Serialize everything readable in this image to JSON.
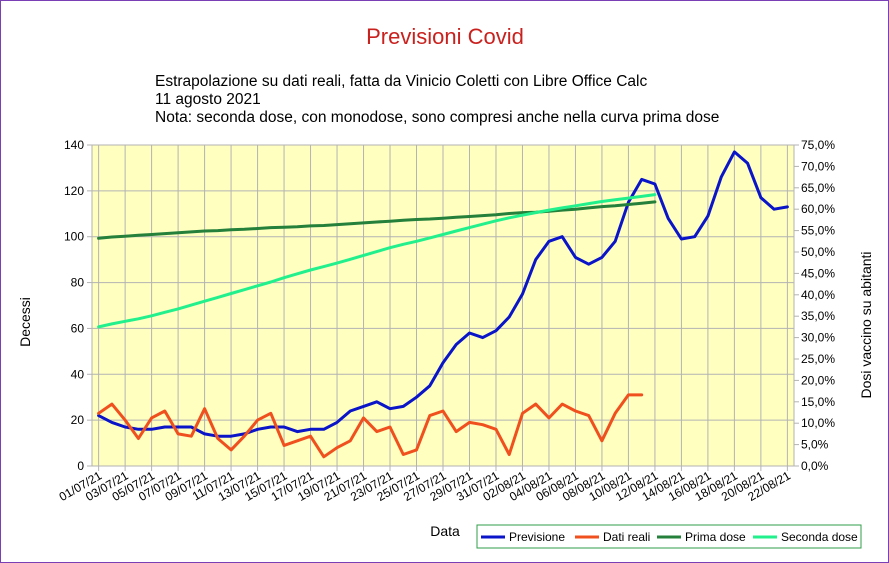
{
  "chart_data": {
    "type": "line",
    "title": "Previsioni Covid",
    "subtitle_lines": [
      "Estrapolazione su dati reali, fatta da Vinicio Coletti con Libre Office Calc",
      "11 agosto 2021",
      "Nota: seconda dose, con monodose, sono compresi anche nella curva prima dose"
    ],
    "xlabel": "Data",
    "ylabel": "Decessi",
    "y2label": "Dosi vaccino su abitanti",
    "ylim": [
      0,
      140
    ],
    "y2lim": [
      0,
      75
    ],
    "y_ticks": [
      "0",
      "20",
      "40",
      "60",
      "80",
      "100",
      "120",
      "140"
    ],
    "y2_ticks": [
      "0,0%",
      "5,0%",
      "10,0%",
      "15,0%",
      "20,0%",
      "25,0%",
      "30,0%",
      "35,0%",
      "40,0%",
      "45,0%",
      "50,0%",
      "55,0%",
      "60,0%",
      "65,0%",
      "70,0%",
      "75,0%"
    ],
    "x_tick_labels": [
      "01/07/21",
      "03/07/21",
      "05/07/21",
      "07/07/21",
      "09/07/21",
      "11/07/21",
      "13/07/21",
      "15/07/21",
      "17/07/21",
      "19/07/21",
      "21/07/21",
      "23/07/21",
      "25/07/21",
      "27/07/21",
      "29/07/21",
      "31/07/21",
      "02/08/21",
      "04/08/21",
      "06/08/21",
      "08/08/21",
      "10/08/21",
      "12/08/21",
      "14/08/21",
      "16/08/21",
      "18/08/21",
      "20/08/21",
      "22/08/21"
    ],
    "grid": true,
    "legend_position": "bottom-right",
    "series": [
      {
        "name": "Previsione",
        "axis": "left",
        "color": "#0a14c8",
        "values": [
          22,
          19,
          17,
          16,
          16,
          17,
          17,
          17,
          14,
          13,
          13,
          14,
          16,
          17,
          17,
          15,
          16,
          16,
          19,
          24,
          26,
          28,
          25,
          26,
          30,
          35,
          45,
          53,
          58,
          56,
          59,
          65,
          75,
          90,
          98,
          100,
          91,
          88,
          91,
          98,
          115,
          125,
          123,
          108,
          99,
          100,
          109,
          126,
          137,
          132,
          117,
          112,
          113
        ]
      },
      {
        "name": "Dati reali",
        "axis": "left",
        "color": "#f0501e",
        "values": [
          23,
          27,
          20,
          12,
          21,
          24,
          14,
          13,
          25,
          12,
          7,
          13,
          20,
          23,
          9,
          11,
          13,
          4,
          8,
          11,
          21,
          15,
          17,
          5,
          7,
          22,
          24,
          15,
          19,
          18,
          16,
          5,
          23,
          27,
          21,
          27,
          24,
          22,
          11,
          23,
          31,
          31
        ]
      },
      {
        "name": "Prima dose",
        "axis": "right",
        "color": "#24803a",
        "values": [
          53.2,
          53.5,
          53.7,
          53.9,
          54.1,
          54.3,
          54.5,
          54.7,
          54.9,
          55.0,
          55.2,
          55.3,
          55.5,
          55.7,
          55.8,
          55.9,
          56.1,
          56.2,
          56.4,
          56.6,
          56.8,
          57.0,
          57.2,
          57.4,
          57.6,
          57.7,
          57.9,
          58.1,
          58.3,
          58.5,
          58.7,
          59.0,
          59.2,
          59.3,
          59.5,
          59.8,
          60.0,
          60.3,
          60.6,
          60.8,
          61.1,
          61.4,
          61.7
        ]
      },
      {
        "name": "Seconda dose",
        "axis": "right",
        "color": "#22f08c",
        "values": [
          32.5,
          33.2,
          33.8,
          34.4,
          35.1,
          35.9,
          36.7,
          37.6,
          38.5,
          39.4,
          40.3,
          41.2,
          42.1,
          43.0,
          44.0,
          44.9,
          45.8,
          46.6,
          47.4,
          48.3,
          49.2,
          50.1,
          51.0,
          51.8,
          52.5,
          53.3,
          54.1,
          54.9,
          55.7,
          56.5,
          57.3,
          58.0,
          58.6,
          59.2,
          59.8,
          60.3,
          60.8,
          61.3,
          61.8,
          62.2,
          62.6,
          63.0,
          63.4
        ]
      }
    ]
  }
}
